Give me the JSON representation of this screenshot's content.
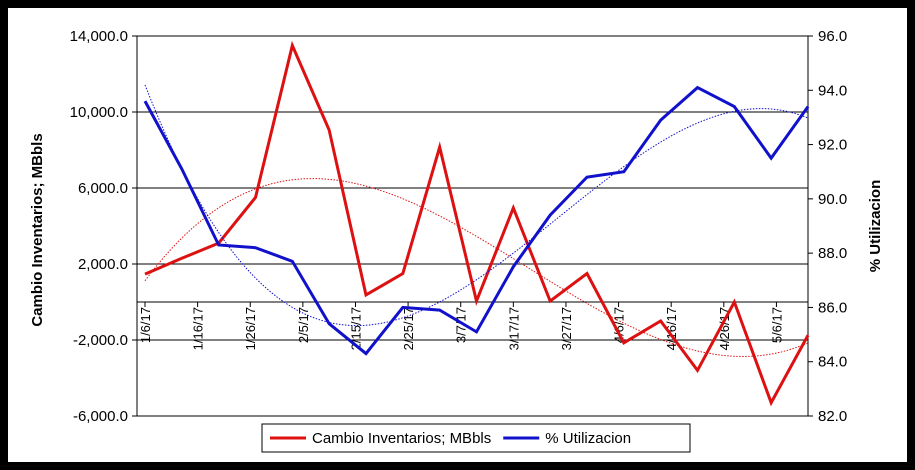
{
  "chart_data": {
    "type": "line",
    "y_label": "Cambio Inventarios; MBbls",
    "y2_label": "% Utilizacion",
    "x": [
      "1/6/17",
      "1/13/17",
      "1/20/17",
      "1/27/17",
      "2/3/17",
      "2/10/17",
      "2/17/17",
      "2/24/17",
      "3/3/17",
      "3/10/17",
      "3/17/17",
      "3/24/17",
      "3/31/17",
      "4/7/17",
      "4/14/17",
      "4/21/17",
      "4/28/17",
      "5/5/17",
      "5/12/17"
    ],
    "xticks": [
      "1/6/17",
      "1/16/17",
      "1/26/17",
      "2/5/17",
      "2/15/17",
      "2/25/17",
      "3/7/17",
      "3/17/17",
      "3/27/17",
      "4/6/17",
      "4/16/17",
      "4/26/17",
      "5/6/17"
    ],
    "series": [
      {
        "name": "Cambio Inventarios; MBbls",
        "color": "#dd1111",
        "axis": "y",
        "values": [
          1470,
          2300,
          3100,
          5500,
          13500,
          9050,
          370,
          1500,
          8150,
          50,
          4950,
          50,
          1500,
          -2150,
          -1000,
          -3600,
          0,
          -5300,
          -1750
        ]
      },
      {
        "name": "% Utilizacion",
        "color": "#1111cc",
        "axis": "y2",
        "values": [
          93.6,
          91.1,
          88.3,
          88.2,
          87.7,
          85.4,
          84.3,
          86.0,
          85.9,
          85.1,
          87.5,
          89.4,
          90.8,
          91.0,
          92.9,
          94.1,
          93.4,
          91.5,
          93.4
        ]
      }
    ],
    "ylim": [
      -6000,
      14000
    ],
    "yticks": [
      {
        "value": 14000,
        "label": "14,000.0"
      },
      {
        "value": 10000,
        "label": "10,000.0"
      },
      {
        "value": 6000,
        "label": "6,000.0"
      },
      {
        "value": 2000,
        "label": "2,000.0"
      },
      {
        "value": -2000,
        "label": "-2,000.0"
      },
      {
        "value": -6000,
        "label": "-6,000.0"
      }
    ],
    "y2lim": [
      82,
      96
    ],
    "y2ticks": [
      {
        "value": 96,
        "label": "96.0"
      },
      {
        "value": 94,
        "label": "94.0"
      },
      {
        "value": 92,
        "label": "92.0"
      },
      {
        "value": 90,
        "label": "90.0"
      },
      {
        "value": 88,
        "label": "88.0"
      },
      {
        "value": 86,
        "label": "86.0"
      },
      {
        "value": 84,
        "label": "84.0"
      },
      {
        "value": 82,
        "label": "82.0"
      }
    ],
    "grid": true,
    "trendlines": true,
    "legend": "bottom"
  }
}
